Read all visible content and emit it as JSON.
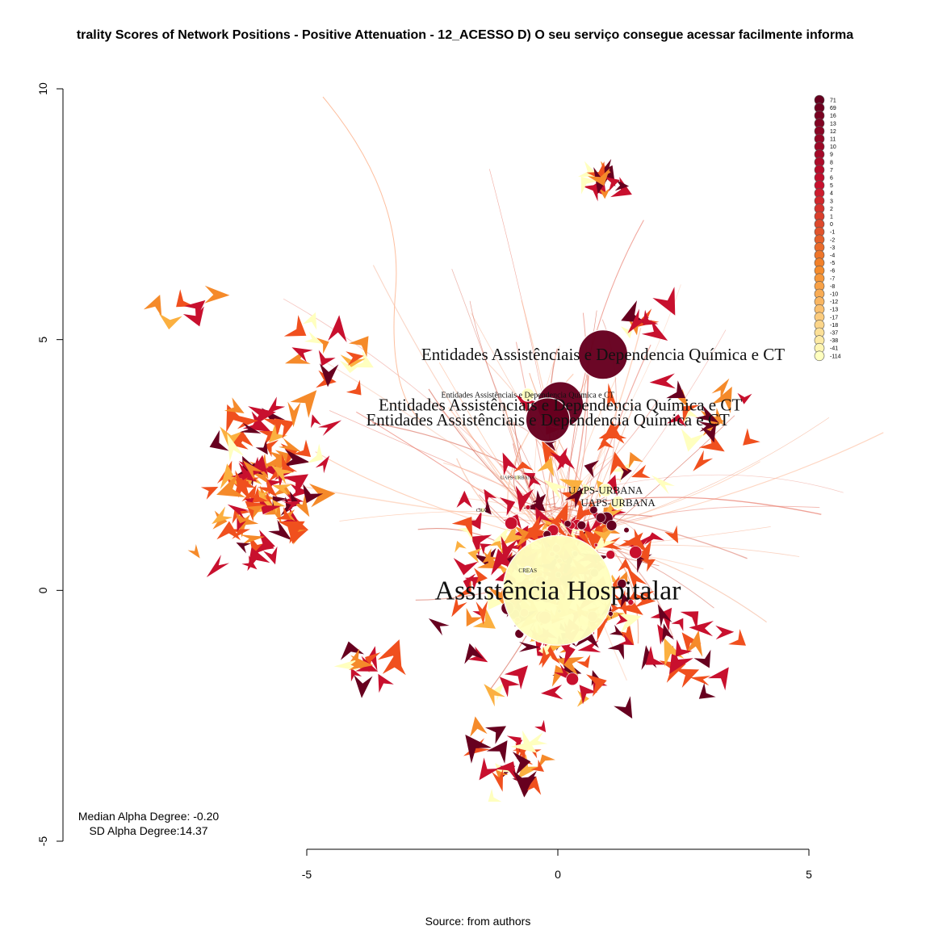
{
  "chart_data": {
    "type": "scatter",
    "title": "trality Scores of Network Positions - Positive Attenuation - 12_ACESSO D) O seu serviço consegue acessar facilmente informa",
    "caption": "Source: from authors",
    "stats": {
      "median": "Median Alpha Degree: -0.20",
      "sd": "SD Alpha Degree:14.37"
    },
    "xlim": [
      -5,
      5
    ],
    "ylim": [
      -5,
      10
    ],
    "x_ticks": [
      "-5",
      "0",
      "5"
    ],
    "y_ticks": [
      "-5",
      "0",
      "5",
      "10"
    ],
    "legend": {
      "position": "top-right",
      "levels": [
        "71",
        "69",
        "16",
        "13",
        "12",
        "11",
        "10",
        "9",
        "8",
        "7",
        "6",
        "5",
        "4",
        "3",
        "2",
        "1",
        "0",
        "-1",
        "-2",
        "-3",
        "-4",
        "-5",
        "-6",
        "-7",
        "-8",
        "-10",
        "-12",
        "-13",
        "-17",
        "-18",
        "-37",
        "-38",
        "-41",
        "-114"
      ]
    },
    "colors": {
      "dark": "#67001f",
      "red": "#c8102e",
      "orange_red": "#f0501e",
      "orange": "#f58a2a",
      "light_orange": "#fbb040",
      "pale": "#ffffbf"
    },
    "nodes": [
      {
        "label": "Assistência Hospitalar",
        "x": 0.0,
        "y": 0.0,
        "size": 1.0,
        "color": "#ffffbf",
        "font": 34
      },
      {
        "label": "Entidades Assistênciais e Dependencia Química e CT",
        "x": 0.9,
        "y": 4.7,
        "size": 0.45,
        "color": "#67001f",
        "font": 21
      },
      {
        "label": "Entidades Assistênciais e Dependencia Química e CT",
        "x": 0.05,
        "y": 3.7,
        "size": 0.42,
        "color": "#67001f",
        "font": 21
      },
      {
        "label": "Entidades Assistênciais e Dependencia Química e CT",
        "x": -0.2,
        "y": 3.4,
        "size": 0.4,
        "color": "#67001f",
        "font": 21
      },
      {
        "label": "Entidades Assistênciais e Dependencia Química e CT",
        "x": -0.6,
        "y": 3.9,
        "size": 0.12,
        "color": "#ffffbf",
        "font": 10
      },
      {
        "label": "UAPS-URBANA",
        "x": 0.95,
        "y": 2.0,
        "size": 0.12,
        "color": "#ffffbf",
        "font": 13
      },
      {
        "label": "UAPS-URBANA",
        "x": 1.2,
        "y": 1.75,
        "size": 0.12,
        "color": "#ffffbf",
        "font": 13
      },
      {
        "label": "CREAS",
        "x": -0.6,
        "y": 0.4,
        "size": 0.07,
        "color": "#ffffbf",
        "font": 7
      },
      {
        "label": "CRAS",
        "x": -1.5,
        "y": 1.6,
        "size": 0.05,
        "color": "#ffffbf",
        "font": 6
      },
      {
        "label": "UAPS-URBANA",
        "x": -0.8,
        "y": 2.25,
        "size": 0.05,
        "color": "#ffffbf",
        "font": 6
      }
    ]
  }
}
